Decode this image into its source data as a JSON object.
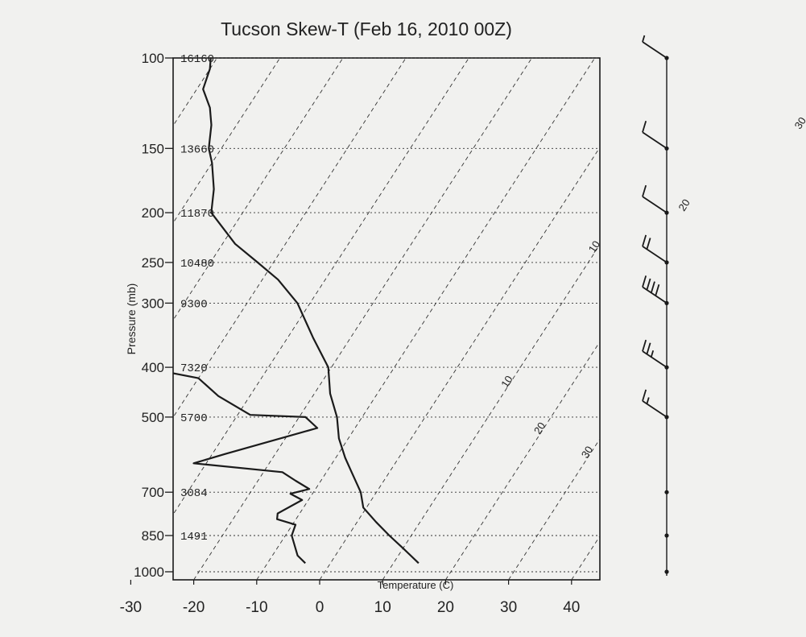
{
  "chart_data": {
    "type": "line",
    "title": "Tucson Skew-T (Feb 16, 2010 00Z)",
    "xlabel": "Temperature (C)",
    "ylabel": "Pressure (mb)",
    "x_ticks": [
      "-30",
      "-20",
      "-10",
      "0",
      "10",
      "20",
      "30",
      "40"
    ],
    "pressure_levels": [
      {
        "p": "100",
        "h": "16160"
      },
      {
        "p": "150",
        "h": "13660"
      },
      {
        "p": "200",
        "h": "11870"
      },
      {
        "p": "250",
        "h": "10480"
      },
      {
        "p": "300",
        "h": "9300"
      },
      {
        "p": "400",
        "h": "7320"
      },
      {
        "p": "500",
        "h": "5700"
      },
      {
        "p": "700",
        "h": "3084"
      },
      {
        "p": "850",
        "h": "1491"
      },
      {
        "p": "1000",
        "h": ""
      }
    ],
    "isotherm_labels": [
      {
        "text": "30",
        "temp": 30,
        "p": 135
      },
      {
        "text": "20",
        "temp": 20,
        "p": 195
      },
      {
        "text": "10",
        "temp": 10,
        "p": 235
      },
      {
        "text": "10",
        "temp": 10,
        "p": 430
      },
      {
        "text": "20",
        "temp": 20,
        "p": 530
      },
      {
        "text": "30",
        "temp": 30,
        "p": 590
      }
    ],
    "series": [
      {
        "key": "temperature",
        "points": [
          [
            14,
            962
          ],
          [
            10,
            900
          ],
          [
            6.5,
            850
          ],
          [
            3,
            800
          ],
          [
            -0.5,
            750
          ],
          [
            -2.5,
            700
          ],
          [
            -6,
            640
          ],
          [
            -8.5,
            600
          ],
          [
            -11.5,
            550
          ],
          [
            -14,
            500
          ],
          [
            -17.5,
            450
          ],
          [
            -20.5,
            400
          ],
          [
            -26,
            350
          ],
          [
            -32,
            300
          ],
          [
            -37.5,
            270
          ],
          [
            -42.5,
            250
          ],
          [
            -48,
            230
          ],
          [
            -55,
            200
          ],
          [
            -57,
            180
          ],
          [
            -60,
            160
          ],
          [
            -62,
            150
          ],
          [
            -64,
            135
          ],
          [
            -66,
            125
          ],
          [
            -69,
            115
          ],
          [
            -70,
            105
          ],
          [
            -71,
            100
          ]
        ]
      },
      {
        "key": "dewpoint",
        "points": [
          [
            -4,
            962
          ],
          [
            -6,
            930
          ],
          [
            -9,
            850
          ],
          [
            -9.5,
            810
          ],
          [
            -13,
            790
          ],
          [
            -13.5,
            770
          ],
          [
            -11,
            725
          ],
          [
            -13.5,
            705
          ],
          [
            -11,
            690
          ],
          [
            -14,
            665
          ],
          [
            -17,
            640
          ],
          [
            -32,
            615
          ],
          [
            -28,
            590
          ],
          [
            -16,
            525
          ],
          [
            -19,
            500
          ],
          [
            -28,
            495
          ],
          [
            -35,
            455
          ],
          [
            -40,
            420
          ],
          [
            -50,
            400
          ],
          [
            -55,
            350
          ],
          [
            -60,
            300
          ],
          [
            -64,
            250
          ],
          [
            -66,
            220
          ],
          [
            -75,
            200
          ],
          [
            -74,
            180
          ],
          [
            -76,
            160
          ],
          [
            -80,
            150
          ],
          [
            -83,
            130
          ],
          [
            -87,
            115
          ],
          [
            -90,
            105
          ],
          [
            -91,
            100
          ]
        ]
      }
    ],
    "wind_barbs": [
      {
        "p": 100,
        "speed_kt": 5
      },
      {
        "p": 150,
        "speed_kt": 10
      },
      {
        "p": 200,
        "speed_kt": 10
      },
      {
        "p": 250,
        "speed_kt": 20
      },
      {
        "p": 300,
        "speed_kt": 40
      },
      {
        "p": 400,
        "speed_kt": 25
      },
      {
        "p": 500,
        "speed_kt": 15
      },
      {
        "p": 700,
        "speed_kt": 0
      },
      {
        "p": 850,
        "speed_kt": 0
      },
      {
        "p": 1000,
        "speed_kt": 0
      }
    ]
  }
}
